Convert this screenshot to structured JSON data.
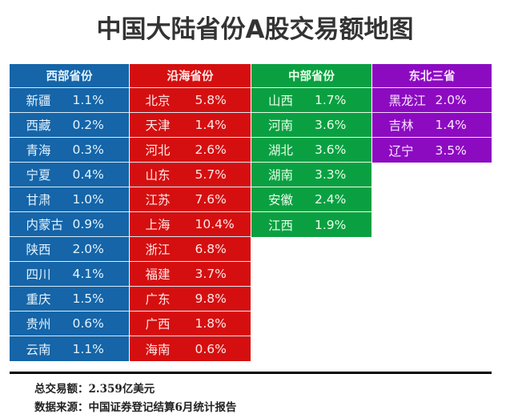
{
  "title": "中国大陆省份A股交易额地图",
  "groups": [
    {
      "name": "西部省份",
      "color": "#1565a8",
      "rows": [
        {
          "province": "新疆",
          "value": "1.1%"
        },
        {
          "province": "西藏",
          "value": "0.2%"
        },
        {
          "province": "青海",
          "value": "0.3%"
        },
        {
          "province": "宁夏",
          "value": "0.4%"
        },
        {
          "province": "甘肃",
          "value": "1.0%"
        },
        {
          "province": "内蒙古",
          "value": "0.9%"
        },
        {
          "province": "陕西",
          "value": "2.0%"
        },
        {
          "province": "四川",
          "value": "4.1%"
        },
        {
          "province": "重庆",
          "value": "1.5%"
        },
        {
          "province": "贵州",
          "value": "0.6%"
        },
        {
          "province": "云南",
          "value": "1.1%"
        }
      ]
    },
    {
      "name": "沿海省份",
      "color": "#d50f0f",
      "rows": [
        {
          "province": "北京",
          "value": "5.8%"
        },
        {
          "province": "天津",
          "value": "1.4%"
        },
        {
          "province": "河北",
          "value": "2.6%"
        },
        {
          "province": "山东",
          "value": "5.7%"
        },
        {
          "province": "江苏",
          "value": "7.6%"
        },
        {
          "province": "上海",
          "value": "10.4%"
        },
        {
          "province": "浙江",
          "value": "6.8%"
        },
        {
          "province": "福建",
          "value": "3.7%"
        },
        {
          "province": "广东",
          "value": "9.8%"
        },
        {
          "province": "广西",
          "value": "1.8%"
        },
        {
          "province": "海南",
          "value": "0.6%"
        }
      ]
    },
    {
      "name": "中部省份",
      "color": "#0aa042",
      "rows": [
        {
          "province": "山西",
          "value": "1.7%"
        },
        {
          "province": "河南",
          "value": "3.6%"
        },
        {
          "province": "湖北",
          "value": "3.6%"
        },
        {
          "province": "湖南",
          "value": "3.3%"
        },
        {
          "province": "安徽",
          "value": "2.4%"
        },
        {
          "province": "江西",
          "value": "1.9%"
        }
      ]
    },
    {
      "name": "东北三省",
      "color": "#8c0bc1",
      "rows": [
        {
          "province": "黑龙江",
          "value": "2.0%"
        },
        {
          "province": "吉林",
          "value": "1.4%"
        },
        {
          "province": "辽宁",
          "value": "3.5%"
        }
      ]
    }
  ],
  "footer": {
    "total": "总交易额：2.359亿美元",
    "source": "数据来源：中国证券登记结算6月统计报告"
  },
  "chart_data": {
    "type": "table",
    "title": "中国大陆省份A股交易额地图",
    "columns": [
      "西部省份",
      "沿海省份",
      "中部省份",
      "东北三省"
    ],
    "series": [
      {
        "name": "西部省份",
        "categories": [
          "新疆",
          "西藏",
          "青海",
          "宁夏",
          "甘肃",
          "内蒙古",
          "陕西",
          "四川",
          "重庆",
          "贵州",
          "云南"
        ],
        "values": [
          1.1,
          0.2,
          0.3,
          0.4,
          1.0,
          0.9,
          2.0,
          4.1,
          1.5,
          0.6,
          1.1
        ]
      },
      {
        "name": "沿海省份",
        "categories": [
          "北京",
          "天津",
          "河北",
          "山东",
          "江苏",
          "上海",
          "浙江",
          "福建",
          "广东",
          "广西",
          "海南"
        ],
        "values": [
          5.8,
          1.4,
          2.6,
          5.7,
          7.6,
          10.4,
          6.8,
          3.7,
          9.8,
          1.8,
          0.6
        ]
      },
      {
        "name": "中部省份",
        "categories": [
          "山西",
          "河南",
          "湖北",
          "湖南",
          "安徽",
          "江西"
        ],
        "values": [
          1.7,
          3.6,
          3.6,
          3.3,
          2.4,
          1.9
        ]
      },
      {
        "name": "东北三省",
        "categories": [
          "黑龙江",
          "吉林",
          "辽宁"
        ],
        "values": [
          2.0,
          1.4,
          3.5
        ]
      }
    ],
    "unit": "%",
    "annotations": [
      "总交易额：2.359亿美元",
      "数据来源：中国证券登记结算6月统计报告"
    ]
  }
}
